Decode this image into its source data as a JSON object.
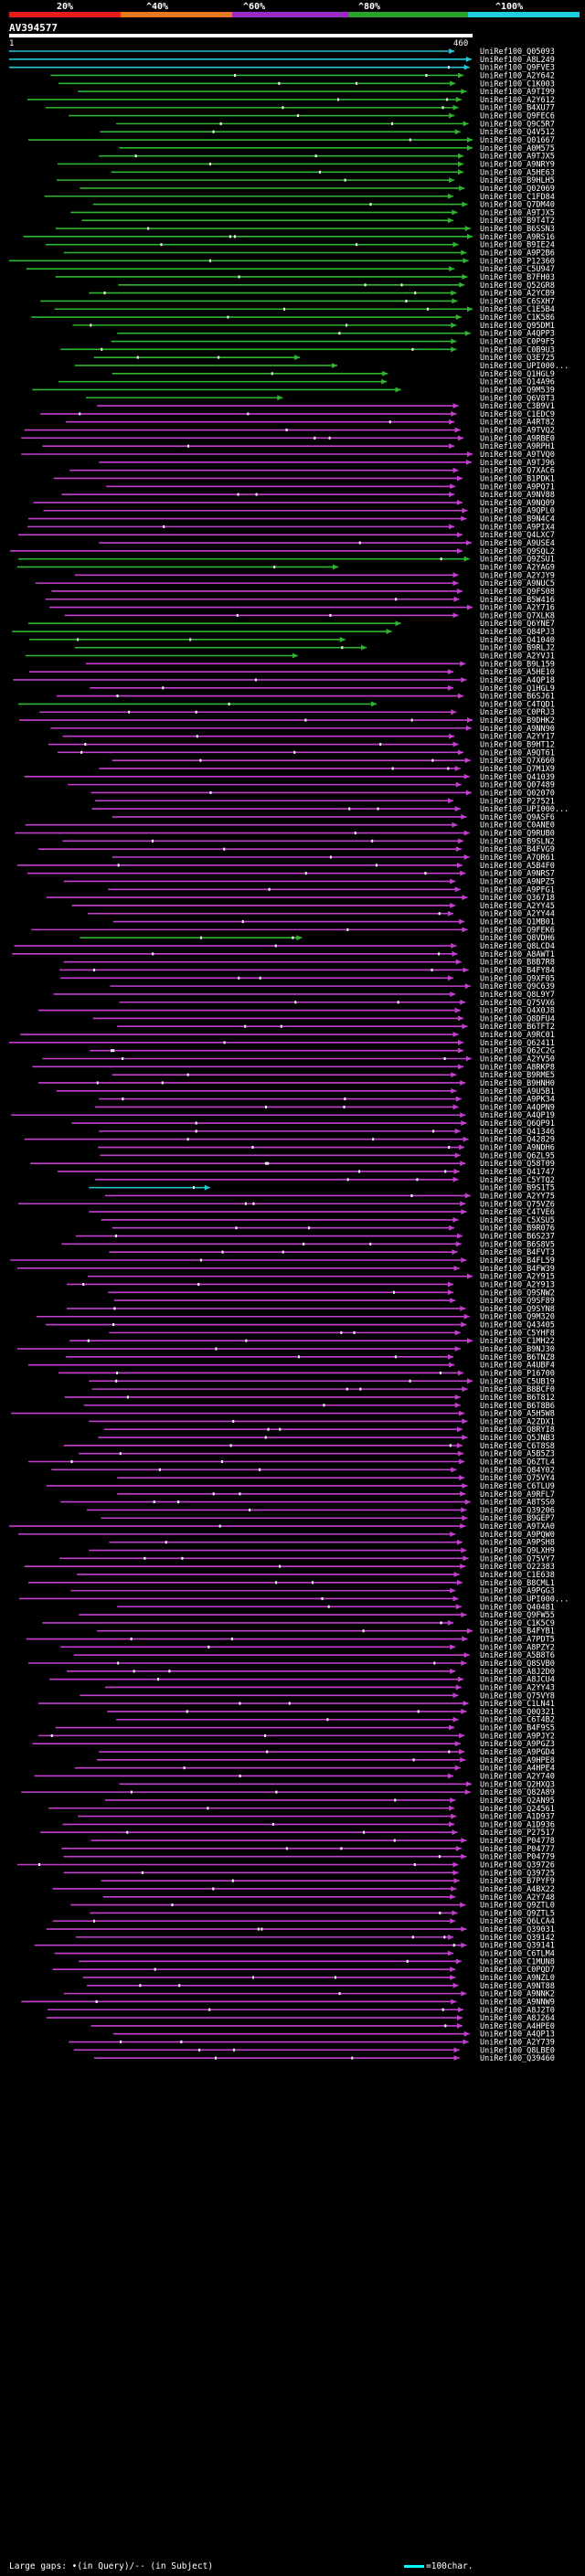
{
  "chart_data": {
    "type": "alignment-map",
    "title": "AV394577",
    "query_range": [
      1,
      460
    ],
    "scale": {
      "labels": [
        "20%",
        "^40%",
        "^60%",
        "^80%",
        "^100%"
      ],
      "colors": [
        "#e81c1c",
        "#e87a1c",
        "#9b2ac2",
        "#2aa52a",
        "#1ccfdc"
      ]
    },
    "identity_colors": {
      "cyan": "#25c8d6",
      "green": "#2fb52f",
      "magenta": "#c43fd0"
    },
    "accessions": [
      "UniRef100_Q05093",
      "UniRef100_A8L249",
      "UniRef100_Q9FVE3",
      "UniRef100_A2Y642",
      "UniRef100_C1K003",
      "UniRef100_A9TI99",
      "UniRef100_A2Y612",
      "UniRef100_B4XU77",
      "UniRef100_Q9FEC6",
      "UniRef100_Q9C5R7",
      "UniRef100_Q4V512",
      "UniRef100_Q01667",
      "UniRef100_A0M575",
      "UniRef100_A9TJX5",
      "UniRef100_A9NRY9",
      "UniRef100_A5HE63",
      "UniRef100_B9HLH5",
      "UniRef100_Q02069",
      "UniRef100_C1FD84",
      "UniRef100_Q7DM40",
      "UniRef100_A9TJX5",
      "UniRef100_B9T4T2",
      "UniRef100_B6SSN3",
      "UniRef100_A9RS16",
      "UniRef100_B9IE24",
      "UniRef100_A9P2B6",
      "UniRef100_P12360",
      "UniRef100_C5U947",
      "UniRef100_B7FH03",
      "UniRef100_Q52GR8",
      "UniRef100_A2YCB9",
      "UniRef100_C6SXH7",
      "UniRef100_C1E5B4",
      "UniRef100_C1K586",
      "UniRef100_Q95DM1",
      "UniRef100_A4QPP3",
      "UniRef100_C0P9F5",
      "UniRef100_C0B9U3",
      "UniRef100_Q3E725",
      "UniRef100_UPI000...",
      "UniRef100_Q1HGL9",
      "UniRef100_Q14A96",
      "UniRef100_Q9M539",
      "UniRef100_Q6V8T3",
      "UniRef100_C3B9V1",
      "UniRef100_C1EDC9",
      "UniRef100_A4RT82",
      "UniRef100_A9TVQ2",
      "UniRef100_A9RBE0",
      "UniRef100_A9RPH1",
      "UniRef100_A9TVQ0",
      "UniRef100_A9TJ96",
      "UniRef100_Q7XAC6",
      "UniRef100_B1PDK1",
      "UniRef100_A9PQ71",
      "UniRef100_A9NV88",
      "UniRef100_A9NQ09",
      "UniRef100_A9QPL0",
      "UniRef100_B9N4C4",
      "UniRef100_A9PIX4",
      "UniRef100_Q4LXC7",
      "UniRef100_A9USE4",
      "UniRef100_Q9SQL2",
      "UniRef100_Q9ZSU1",
      "UniRef100_A2YAG9",
      "UniRef100_A2YJY9",
      "UniRef100_A9NUC5",
      "UniRef100_Q9FS08",
      "UniRef100_B5W416",
      "UniRef100_A2Y716",
      "UniRef100_Q7XLK8",
      "UniRef100_Q6YNE7",
      "UniRef100_Q84PJ3",
      "UniRef100_Q41040",
      "UniRef100_B9RLJ2",
      "UniRef100_A2YVJ1",
      "UniRef100_B9L159",
      "UniRef100_A5HE10",
      "UniRef100_A4QP18",
      "UniRef100_Q1HGL9",
      "UniRef100_B6SJ61",
      "UniRef100_C4TQD1",
      "UniRef100_C0PRJ3",
      "UniRef100_B9DHK2",
      "UniRef100_A9NN90",
      "UniRef100_A2YY17",
      "UniRef100_B9HT12",
      "UniRef100_A9QT61",
      "UniRef100_Q7X660",
      "UniRef100_Q7M1X9",
      "UniRef100_Q41039",
      "UniRef100_Q07489",
      "UniRef100_Q02070",
      "UniRef100_P27521",
      "UniRef100_UPI000...",
      "UniRef100_Q9ASF6",
      "UniRef100_C0ANE0",
      "UniRef100_Q9RUB0",
      "UniRef100_B9SLN2",
      "UniRef100_B4FVG9",
      "UniRef100_A7QR61",
      "UniRef100_A5B4F0",
      "UniRef100_A9NRS7",
      "UniRef100_A9NPZ5",
      "UniRef100_A9PFG1",
      "UniRef100_Q36718",
      "UniRef100_A2YY45",
      "UniRef100_A2YY44",
      "UniRef100_Q1MB01",
      "UniRef100_Q9FEK6",
      "UniRef100_Q8VDH6",
      "UniRef100_Q8LCD4",
      "UniRef100_A8AWT1",
      "UniRef100_B8B7R8",
      "UniRef100_B4FY84",
      "UniRef100_Q9XF05",
      "UniRef100_Q9C639",
      "UniRef100_Q8L9Y7",
      "UniRef100_Q75VX6",
      "UniRef100_Q4X0J8",
      "UniRef100_Q8DFU4",
      "UniRef100_B6TFT2",
      "UniRef100_A9RC01",
      "UniRef100_Q62411",
      "UniRef100_Q62C2G",
      "UniRef100_A2YV50",
      "UniRef100_A8RKP8",
      "UniRef100_B9RME5",
      "UniRef100_B9HNH0",
      "UniRef100_A9U5B1",
      "UniRef100_A9PK34",
      "UniRef100_A4QPN9",
      "UniRef100_A4QP19",
      "UniRef100_Q6QP91",
      "UniRef100_Q41346",
      "UniRef100_Q42829",
      "UniRef100_A9NDH6",
      "UniRef100_Q6ZL95",
      "UniRef100_Q58T09",
      "UniRef100_Q41747",
      "UniRef100_C5YTQ2",
      "UniRef100_B9S1T5",
      "UniRef100_A2YY75",
      "UniRef100_Q75VZ6",
      "UniRef100_C4TVE6",
      "UniRef100_C5XSU5",
      "UniRef100_B9R076",
      "UniRef100_B6S237",
      "UniRef100_B6S8V5",
      "UniRef100_B4FVT3",
      "UniRef100_B4FL59",
      "UniRef100_B4FW39",
      "UniRef100_A2Y915",
      "UniRef100_A2Y913",
      "UniRef100_Q9SNW2",
      "UniRef100_Q9SF89",
      "UniRef100_Q9SYN8",
      "UniRef100_Q9M320",
      "UniRef100_Q43405",
      "UniRef100_C5YHF8",
      "UniRef100_C1MH22",
      "UniRef100_B9NJ30",
      "UniRef100_B6TNZ8",
      "UniRef100_A4UBF4",
      "UniRef100_P16700",
      "UniRef100_C5UB19",
      "UniRef100_B8BCF0",
      "UniRef100_B6T812",
      "UniRef100_B6T8B6",
      "UniRef100_A5H5W8",
      "UniRef100_A2ZDX1",
      "UniRef100_Q8RYI8",
      "UniRef100_Q5JNB3",
      "UniRef100_C6T8S8",
      "UniRef100_A5B5Z3",
      "UniRef100_Q6ZTL4",
      "UniRef100_Q84Y02",
      "UniRef100_Q75VY4",
      "UniRef100_C6TLU9",
      "UniRef100_A9RFL7",
      "UniRef100_A8TSS0",
      "UniRef100_Q39206",
      "UniRef100_B9GEP7",
      "UniRef100_A9TXA0",
      "UniRef100_A9PQW0",
      "UniRef100_A9PSH8",
      "UniRef100_Q9LXH9",
      "UniRef100_Q75VY7",
      "UniRef100_O22383",
      "UniRef100_C1E638",
      "UniRef100_B8CML1",
      "UniRef100_A9PGG3",
      "UniRef100_UPI000...",
      "UniRef100_Q40481",
      "UniRef100_Q9FW55",
      "UniRef100_C1K5C9",
      "UniRef100_B4FYB1",
      "UniRef100_A7PDT5",
      "UniRef100_A8PZY2",
      "UniRef100_A5B8T6",
      "UniRef100_Q8SVB0",
      "UniRef100_A8J2D0",
      "UniRef100_A8JCU4",
      "UniRef100_A2YY43",
      "UniRef100_Q75VY8",
      "UniRef100_C1LN41",
      "UniRef100_Q0Q321",
      "UniRef100_C6T4B2",
      "UniRef100_B4F9S5",
      "UniRef100_A9PJY2",
      "UniRef100_A9PGZ3",
      "UniRef100_A9PGD4",
      "UniRef100_A9HPE8",
      "UniRef100_A4HPE4",
      "UniRef100_A2Y740",
      "UniRef100_Q2HXQ3",
      "UniRef100_Q82A89",
      "UniRef100_Q2AN95",
      "UniRef100_Q24561",
      "UniRef100_A1D937",
      "UniRef100_A1D936",
      "UniRef100_P27517",
      "UniRef100_P04778",
      "UniRef100_P04777",
      "UniRef100_P04779",
      "UniRef100_Q39726",
      "UniRef100_Q39725",
      "UniRef100_B7PYF9",
      "UniRef100_A4BX22",
      "UniRef100_A2Y748",
      "UniRef100_Q9ZTL0",
      "UniRef100_Q9ZTL5",
      "UniRef100_Q6LCA4",
      "UniRef100_Q39031",
      "UniRef100_Q39142",
      "UniRef100_Q39141",
      "UniRef100_C6TLM4",
      "UniRef100_C1MUN8",
      "UniRef100_C0PQD7",
      "UniRef100_A9NZL0",
      "UniRef100_A9NT88",
      "UniRef100_A9NNK2",
      "UniRef100_A9NNW9",
      "UniRef100_A8J2T0",
      "UniRef100_A8J264",
      "UniRef100_A4HPE0",
      "UniRef100_A4QP13",
      "UniRef100_A2Y739",
      "UniRef100_Q8LBE0",
      "UniRef100_Q39460"
    ],
    "gap_glyphs": [
      "•",
      "|"
    ]
  },
  "footer": {
    "gaps_text": "Large gaps: •(in Query)/-- (in Subject)",
    "legend_text": "=100char."
  }
}
